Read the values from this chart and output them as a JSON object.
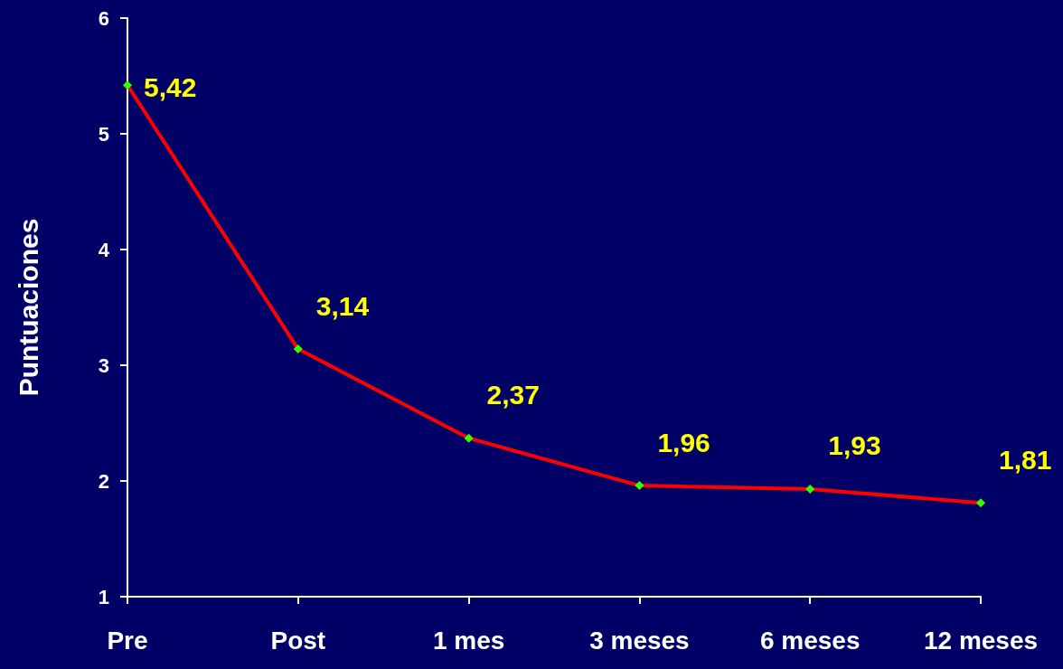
{
  "chart_data": {
    "type": "line",
    "ylabel": "Puntuaciones",
    "categories": [
      "Pre",
      "Post",
      "1 mes",
      "3 meses",
      "6 meses",
      "12 meses"
    ],
    "series": [
      {
        "color": "#ff0000",
        "values": [
          5.42,
          3.14,
          2.37,
          1.96,
          1.93,
          1.81
        ],
        "value_labels": [
          "5,42",
          "3,14",
          "2,37",
          "1,96",
          "1,93",
          "1,81"
        ]
      }
    ],
    "ylim": [
      1,
      6
    ],
    "yticks": [
      1,
      2,
      3,
      4,
      5,
      6
    ],
    "grid": false,
    "marker": "diamond",
    "line_style": "solid"
  }
}
